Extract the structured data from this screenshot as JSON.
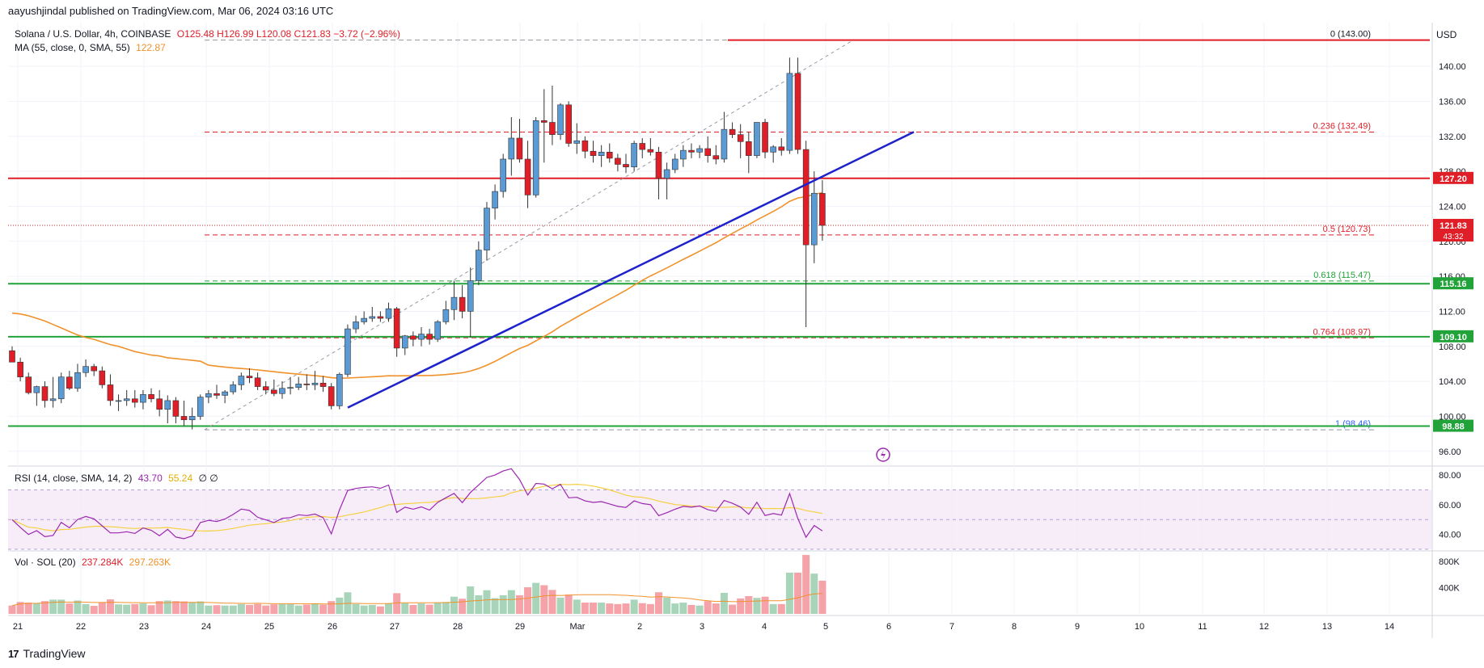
{
  "header": {
    "note": "aayushjindal published on TradingView.com, Mar 06, 2024 03:16 UTC",
    "symbol": "Solana / U.S. Dollar, 4h, COINBASE",
    "ohlc": "O125.48 H126.99 L120.08 C121.83 −3.72 (−2.96%)",
    "ma_label": "MA (55, close, 0, SMA, 55)",
    "ma_value": "122.87",
    "currency": "USD"
  },
  "brand": {
    "logo": "17",
    "name": "TradingView"
  },
  "colors": {
    "up": "#5b9bd5",
    "down": "#e01e28",
    "ma": "#f0922b",
    "trend": "#1e22cc",
    "red_level": "#e01e28",
    "green_level": "#22a33a",
    "rsi": "#9c27b0",
    "rsi_ma": "#f5d142",
    "vol_up": "#a8d5ba",
    "vol_down": "#f5a3a8"
  },
  "chart_data": {
    "type": "candlestick",
    "title": "Solana / U.S. Dollar, 4h, COINBASE",
    "ylim": [
      94.5,
      145
    ],
    "yticks": [
      "140.00",
      "136.00",
      "132.00",
      "128.00",
      "124.00",
      "120.00",
      "116.00",
      "112.00",
      "108.00",
      "104.00",
      "100.00",
      "96.00"
    ],
    "x_labels": [
      "21",
      "22",
      "23",
      "24",
      "25",
      "26",
      "27",
      "28",
      "29",
      "Mar",
      "2",
      "3",
      "4",
      "5",
      "6",
      "7",
      "8",
      "9",
      "10",
      "11",
      "12",
      "13",
      "14"
    ],
    "candles": [
      [
        107.5,
        108.0,
        106.5,
        106.2
      ],
      [
        106.2,
        106.7,
        104.0,
        104.5
      ],
      [
        104.5,
        105.0,
        102.5,
        102.7
      ],
      [
        102.7,
        103.5,
        101.2,
        103.4
      ],
      [
        103.4,
        104.0,
        101.0,
        101.8
      ],
      [
        101.8,
        104.5,
        101.0,
        102.0
      ],
      [
        102.0,
        105.0,
        101.5,
        104.5
      ],
      [
        104.5,
        105.2,
        103.0,
        103.2
      ],
      [
        103.2,
        106.0,
        102.8,
        105.0
      ],
      [
        105.0,
        106.5,
        104.5,
        105.7
      ],
      [
        105.7,
        106.0,
        104.6,
        105.2
      ],
      [
        105.2,
        105.7,
        103.2,
        103.6
      ],
      [
        103.6,
        104.8,
        101.2,
        101.8
      ],
      [
        101.8,
        102.5,
        100.6,
        101.8
      ],
      [
        101.8,
        103.0,
        101.2,
        102.0
      ],
      [
        102.0,
        103.0,
        101.0,
        101.6
      ],
      [
        101.6,
        103.0,
        100.8,
        102.5
      ],
      [
        102.5,
        103.2,
        101.6,
        102.0
      ],
      [
        102.0,
        103.0,
        100.0,
        100.8
      ],
      [
        100.8,
        102.4,
        99.2,
        101.8
      ],
      [
        101.8,
        102.2,
        99.2,
        100.0
      ],
      [
        100.0,
        101.8,
        98.9,
        99.6
      ],
      [
        99.6,
        101.0,
        98.5,
        100.0
      ],
      [
        100.0,
        102.5,
        99.6,
        102.2
      ],
      [
        102.2,
        103.0,
        101.5,
        102.6
      ],
      [
        102.6,
        103.6,
        102.0,
        102.4
      ],
      [
        102.4,
        103.0,
        101.5,
        102.8
      ],
      [
        102.8,
        104.0,
        102.5,
        103.6
      ],
      [
        103.6,
        105.0,
        103.0,
        104.6
      ],
      [
        104.6,
        105.5,
        103.8,
        104.4
      ],
      [
        104.4,
        105.0,
        103.0,
        103.4
      ],
      [
        103.4,
        104.0,
        102.5,
        103.0
      ],
      [
        103.0,
        104.2,
        102.3,
        102.6
      ],
      [
        102.6,
        104.0,
        102.0,
        103.2
      ],
      [
        103.2,
        104.5,
        102.5,
        103.3
      ],
      [
        103.3,
        104.5,
        103.0,
        103.7
      ],
      [
        103.7,
        104.8,
        103.0,
        103.6
      ],
      [
        103.6,
        105.2,
        103.0,
        103.8
      ],
      [
        103.8,
        104.6,
        102.8,
        103.4
      ],
      [
        103.4,
        103.8,
        100.8,
        101.2
      ],
      [
        101.2,
        105.0,
        100.8,
        104.8
      ],
      [
        104.8,
        110.5,
        104.5,
        110.0
      ],
      [
        110.0,
        111.5,
        109.5,
        110.8
      ],
      [
        110.8,
        112.0,
        110.5,
        111.2
      ],
      [
        111.2,
        112.5,
        110.8,
        111.4
      ],
      [
        111.4,
        112.0,
        110.8,
        111.2
      ],
      [
        111.2,
        113.0,
        110.8,
        112.3
      ],
      [
        112.3,
        112.5,
        106.8,
        107.8
      ],
      [
        107.8,
        109.3,
        107.0,
        109.2
      ],
      [
        109.2,
        109.7,
        108.0,
        108.8
      ],
      [
        108.8,
        110.2,
        108.0,
        109.4
      ],
      [
        109.4,
        110.0,
        108.2,
        108.8
      ],
      [
        108.8,
        111.0,
        108.5,
        110.8
      ],
      [
        110.8,
        113.2,
        110.5,
        112.2
      ],
      [
        112.2,
        115.5,
        111.0,
        113.6
      ],
      [
        113.6,
        115.0,
        111.2,
        112.0
      ],
      [
        112.0,
        117.0,
        109.0,
        115.5
      ],
      [
        115.5,
        120.0,
        115.0,
        119.0
      ],
      [
        119.0,
        124.5,
        117.8,
        123.8
      ],
      [
        123.8,
        126.5,
        122.5,
        125.7
      ],
      [
        125.7,
        130.0,
        125.0,
        129.4
      ],
      [
        129.4,
        134.2,
        127.5,
        131.8
      ],
      [
        131.8,
        134.0,
        129.0,
        129.4
      ],
      [
        129.4,
        131.5,
        123.8,
        125.3
      ],
      [
        125.3,
        134.2,
        125.0,
        133.8
      ],
      [
        133.8,
        137.4,
        129.0,
        133.6
      ],
      [
        133.6,
        137.8,
        131.0,
        132.2
      ],
      [
        132.2,
        135.8,
        131.6,
        135.6
      ],
      [
        135.6,
        136.0,
        130.8,
        131.2
      ],
      [
        131.2,
        133.5,
        130.0,
        131.5
      ],
      [
        131.5,
        132.0,
        129.5,
        130.3
      ],
      [
        130.3,
        131.5,
        129.0,
        129.8
      ],
      [
        129.8,
        131.0,
        128.5,
        130.2
      ],
      [
        130.2,
        131.2,
        129.0,
        129.5
      ],
      [
        129.5,
        130.0,
        128.0,
        128.8
      ],
      [
        128.8,
        130.0,
        127.8,
        128.5
      ],
      [
        128.5,
        131.5,
        128.0,
        131.2
      ],
      [
        131.2,
        131.8,
        129.5,
        130.5
      ],
      [
        130.5,
        131.8,
        129.8,
        130.2
      ],
      [
        130.2,
        130.8,
        124.8,
        127.2
      ],
      [
        127.2,
        129.0,
        124.8,
        128.2
      ],
      [
        128.2,
        130.0,
        127.8,
        129.4
      ],
      [
        129.4,
        131.0,
        128.5,
        130.4
      ],
      [
        130.4,
        131.2,
        129.5,
        130.2
      ],
      [
        130.2,
        131.0,
        129.5,
        130.6
      ],
      [
        130.6,
        132.0,
        129.0,
        129.8
      ],
      [
        129.8,
        131.0,
        128.8,
        129.4
      ],
      [
        129.4,
        134.8,
        129.0,
        132.8
      ],
      [
        132.8,
        133.6,
        131.8,
        132.2
      ],
      [
        132.2,
        133.4,
        129.5,
        131.4
      ],
      [
        131.4,
        132.5,
        127.8,
        129.8
      ],
      [
        129.8,
        133.6,
        129.5,
        133.6
      ],
      [
        133.6,
        134.0,
        129.5,
        130.2
      ],
      [
        130.2,
        131.0,
        129.0,
        130.8
      ],
      [
        130.8,
        131.8,
        129.8,
        130.4
      ],
      [
        130.4,
        141.0,
        130.0,
        139.2
      ],
      [
        139.2,
        141.0,
        130.0,
        130.5
      ],
      [
        130.5,
        131.5,
        110.2,
        119.6
      ],
      [
        119.6,
        128.0,
        117.5,
        125.5
      ],
      [
        125.48,
        126.99,
        120.08,
        121.83
      ]
    ],
    "levels": [
      {
        "label": "0 (143.00)",
        "value": 143.0
      },
      {
        "label": "0.236 (132.49)",
        "value": 132.49
      },
      {
        "label": "0.5 (120.73)",
        "value": 120.73
      },
      {
        "label": "0.618 (115.47)",
        "value": 115.47
      },
      {
        "label": "0.764 (108.97)",
        "value": 108.97
      },
      {
        "label": "1 (98.46)",
        "value": 98.46
      }
    ],
    "price_tags": [
      {
        "label": "127.20",
        "value": 127.2,
        "kind": "red"
      },
      {
        "label": "121.83",
        "value": 121.83,
        "kind": "red",
        "sub": "43:32"
      },
      {
        "label": "115.16",
        "value": 115.16,
        "kind": "green"
      },
      {
        "label": "109.10",
        "value": 109.1,
        "kind": "green"
      },
      {
        "label": "98.88",
        "value": 98.88,
        "kind": "green"
      }
    ],
    "rsi": {
      "label": "RSI (14, close, SMA, 14, 2)",
      "value": "43.70",
      "ma_value": "55.24",
      "extra": "∅ ∅",
      "yticks": [
        "80.00",
        "60.00",
        "40.00"
      ],
      "ylim": [
        30,
        85
      ],
      "upper": 70,
      "lower": 30
    },
    "volume": {
      "label": "Vol · SOL (20)",
      "value": "237.284K",
      "ma_value": "297.263K",
      "yticks": [
        "800K",
        "400K"
      ]
    }
  }
}
